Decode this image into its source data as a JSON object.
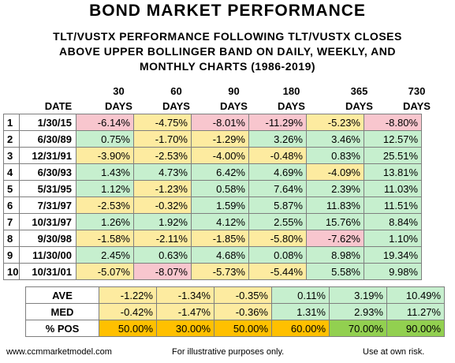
{
  "title": "BOND MARKET PERFORMANCE",
  "subtitle_lines": [
    "TLT/VUSTX PERFORMANCE FOLLOWING TLT/VUSTX CLOSES",
    "ABOVE UPPER BOLLINGER BAND ON DAILY, WEEKLY, AND",
    "MONTHLY CHARTS (1986-2019)"
  ],
  "header": {
    "date_label": "DATE",
    "periods": [
      "30",
      "60",
      "90",
      "180",
      "365",
      "730"
    ],
    "unit": "DAYS"
  },
  "rows": [
    {
      "n": "1",
      "date": "1/30/15",
      "values": [
        "-6.14%",
        "-4.75%",
        "-8.01%",
        "-11.29%",
        "-5.23%",
        "-8.80%"
      ],
      "styles": [
        "bad",
        "neg",
        "bad",
        "bad",
        "neg",
        "bad"
      ]
    },
    {
      "n": "2",
      "date": "6/30/89",
      "values": [
        "0.75%",
        "-1.70%",
        "-1.29%",
        "3.26%",
        "3.46%",
        "12.57%"
      ],
      "styles": [
        "pos",
        "neg",
        "neg",
        "pos",
        "pos",
        "pos"
      ]
    },
    {
      "n": "3",
      "date": "12/31/91",
      "values": [
        "-3.90%",
        "-2.53%",
        "-4.00%",
        "-0.48%",
        "0.83%",
        "25.51%"
      ],
      "styles": [
        "neg",
        "neg",
        "neg",
        "neg",
        "pos",
        "pos"
      ]
    },
    {
      "n": "4",
      "date": "6/30/93",
      "values": [
        "1.43%",
        "4.73%",
        "6.42%",
        "4.69%",
        "-4.09%",
        "13.81%"
      ],
      "styles": [
        "pos",
        "pos",
        "pos",
        "pos",
        "neg",
        "pos"
      ]
    },
    {
      "n": "5",
      "date": "5/31/95",
      "values": [
        "1.12%",
        "-1.23%",
        "0.58%",
        "7.64%",
        "2.39%",
        "11.03%"
      ],
      "styles": [
        "pos",
        "neg",
        "pos",
        "pos",
        "pos",
        "pos"
      ]
    },
    {
      "n": "6",
      "date": "7/31/97",
      "values": [
        "-2.53%",
        "-0.32%",
        "1.59%",
        "5.87%",
        "11.83%",
        "11.51%"
      ],
      "styles": [
        "neg",
        "neg",
        "pos",
        "pos",
        "pos",
        "pos"
      ]
    },
    {
      "n": "7",
      "date": "10/31/97",
      "values": [
        "1.26%",
        "1.92%",
        "4.12%",
        "2.55%",
        "15.76%",
        "8.84%"
      ],
      "styles": [
        "pos",
        "pos",
        "pos",
        "pos",
        "pos",
        "pos"
      ]
    },
    {
      "n": "8",
      "date": "9/30/98",
      "values": [
        "-1.58%",
        "-2.11%",
        "-1.85%",
        "-5.80%",
        "-7.62%",
        "1.10%"
      ],
      "styles": [
        "neg",
        "neg",
        "neg",
        "neg",
        "bad",
        "pos"
      ]
    },
    {
      "n": "9",
      "date": "11/30/00",
      "values": [
        "2.45%",
        "0.63%",
        "4.68%",
        "0.08%",
        "8.98%",
        "19.34%"
      ],
      "styles": [
        "pos",
        "pos",
        "pos",
        "pos",
        "pos",
        "pos"
      ]
    },
    {
      "n": "10",
      "date": "10/31/01",
      "values": [
        "-5.07%",
        "-8.07%",
        "-5.73%",
        "-5.44%",
        "5.58%",
        "9.98%"
      ],
      "styles": [
        "neg",
        "bad",
        "neg",
        "neg",
        "pos",
        "pos"
      ]
    }
  ],
  "summary": [
    {
      "label": "AVE",
      "values": [
        "-1.22%",
        "-1.34%",
        "-0.35%",
        "0.11%",
        "3.19%",
        "10.49%"
      ],
      "styles": [
        "neg",
        "neg",
        "neg",
        "pos",
        "pos",
        "pos"
      ]
    },
    {
      "label": "MED",
      "values": [
        "-0.42%",
        "-1.47%",
        "-0.36%",
        "1.31%",
        "2.93%",
        "11.27%"
      ],
      "styles": [
        "neg",
        "neg",
        "neg",
        "pos",
        "pos",
        "pos"
      ]
    },
    {
      "label": "% POS",
      "values": [
        "50.00%",
        "30.00%",
        "50.00%",
        "60.00%",
        "70.00%",
        "90.00%"
      ],
      "styles": [
        "pctlow",
        "pctlow",
        "pctlow",
        "pctlow",
        "pcthigh",
        "pcthigh"
      ]
    }
  ],
  "footer": {
    "website": "www.ccmmarketmodel.com",
    "disclaimer": "For illustrative purposes only.",
    "risk": "Use at own risk."
  },
  "colors": {
    "negative_fill": "#fdeba0",
    "positive_fill": "#c6efce",
    "worst_fill": "#f8c6ce",
    "pct_low_fill": "#ffc000",
    "pct_high_fill": "#92d050",
    "grid": "#7f7f7f"
  }
}
